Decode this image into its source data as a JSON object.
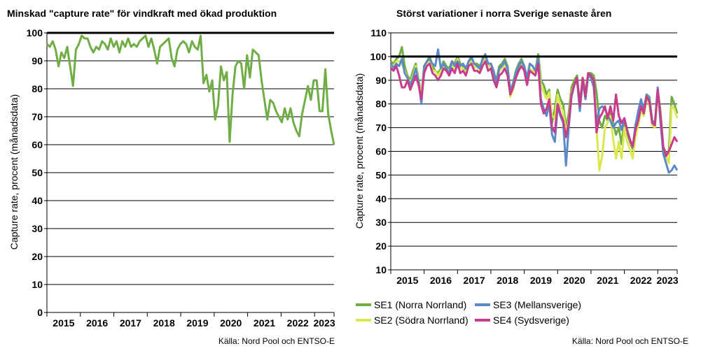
{
  "chart_data": [
    {
      "type": "line",
      "title": "Minskad \"capture rate\" för vindkraft med ökad produktion",
      "ylabel": "Capture rate, procent (månadsdata)",
      "xlabel": "",
      "ylim": [
        0,
        100
      ],
      "yticks": [
        0,
        10,
        20,
        30,
        40,
        50,
        60,
        70,
        80,
        90,
        100
      ],
      "x_tick_labels": [
        "2015",
        "2016",
        "2017",
        "2018",
        "2019",
        "2020",
        "2021",
        "2022",
        "2023"
      ],
      "reference_line": 100,
      "grid": true,
      "source": "Källa: Nord Pool och ENTSO-E",
      "series": [
        {
          "color": "#70ad47",
          "values": [
            96,
            95,
            97,
            94,
            88,
            93,
            91,
            95,
            88,
            81,
            94,
            96,
            99,
            98,
            98,
            95,
            93,
            95,
            94,
            97,
            96,
            94,
            98,
            95,
            97,
            93,
            97,
            95,
            98,
            95,
            96,
            95,
            97,
            98,
            99,
            95,
            98,
            94,
            89,
            95,
            96,
            97,
            98,
            91,
            88,
            94,
            96,
            97,
            96,
            93,
            97,
            95,
            94,
            99,
            82,
            85,
            79,
            83,
            69,
            74,
            88,
            83,
            86,
            61,
            78,
            88,
            90,
            89,
            80,
            92,
            84,
            94,
            93,
            92,
            83,
            76,
            69,
            76,
            75,
            72,
            70,
            68,
            73,
            69,
            73,
            68,
            65,
            63,
            71,
            76,
            81,
            76,
            83,
            83,
            72,
            72,
            87,
            71,
            65,
            60
          ]
        }
      ]
    },
    {
      "type": "line",
      "title": "Störst variationer i norra Sverige senaste åren",
      "ylabel": "Capture rate, procent (månadsdata)",
      "xlabel": "",
      "ylim": [
        10,
        110
      ],
      "yticks": [
        10,
        20,
        30,
        40,
        50,
        60,
        70,
        80,
        90,
        100,
        110
      ],
      "x_tick_labels": [
        "2015",
        "2016",
        "2017",
        "2018",
        "2019",
        "2020",
        "2021",
        "2022",
        "2023"
      ],
      "reference_line": 100,
      "grid": true,
      "legend_position": "bottom",
      "source": "Källa: Nord Pool och ENTSO-E",
      "series": [
        {
          "name": "SE1 (Norra Norrland)",
          "color": "#70ad47",
          "values": [
            98,
            97,
            99,
            100,
            104,
            96,
            92,
            90,
            94,
            97,
            90,
            84,
            96,
            98,
            100,
            96,
            94,
            93,
            95,
            98,
            96,
            95,
            98,
            97,
            100,
            97,
            96,
            94,
            98,
            99,
            97,
            97,
            96,
            98,
            100,
            97,
            97,
            93,
            90,
            96,
            97,
            99,
            96,
            85,
            89,
            94,
            97,
            99,
            96,
            91,
            97,
            96,
            94,
            101,
            90,
            88,
            84,
            86,
            72,
            78,
            86,
            82,
            80,
            70,
            76,
            87,
            90,
            92,
            80,
            91,
            85,
            93,
            93,
            92,
            85,
            73,
            70,
            75,
            73,
            77,
            72,
            67,
            70,
            63,
            73,
            68,
            64,
            61,
            70,
            74,
            80,
            78,
            84,
            83,
            73,
            72,
            86,
            77,
            62,
            59,
            60,
            83,
            80,
            76
          ]
        },
        {
          "name": "SE2 (Södra Norrland)",
          "color": "#d9e84f",
          "values": [
            96,
            96,
            98,
            98,
            97,
            94,
            91,
            89,
            92,
            96,
            89,
            84,
            95,
            97,
            98,
            94,
            94,
            92,
            94,
            96,
            95,
            93,
            97,
            95,
            99,
            95,
            95,
            93,
            97,
            98,
            95,
            96,
            94,
            97,
            99,
            96,
            96,
            91,
            88,
            94,
            95,
            97,
            94,
            83,
            86,
            92,
            95,
            97,
            95,
            89,
            95,
            94,
            93,
            98,
            88,
            85,
            82,
            85,
            75,
            74,
            84,
            79,
            77,
            68,
            73,
            85,
            88,
            90,
            78,
            89,
            83,
            91,
            92,
            88,
            70,
            52,
            58,
            70,
            72,
            75,
            65,
            57,
            64,
            57,
            70,
            64,
            61,
            57,
            66,
            71,
            77,
            75,
            82,
            80,
            71,
            70,
            84,
            76,
            60,
            58,
            55,
            79,
            78,
            74
          ]
        },
        {
          "name": "SE3 (Mellansverige)",
          "color": "#5b8ac6",
          "values": [
            97,
            95,
            97,
            96,
            99,
            93,
            91,
            88,
            91,
            95,
            89,
            80,
            96,
            98,
            99,
            97,
            96,
            103,
            95,
            97,
            95,
            93,
            98,
            96,
            98,
            96,
            97,
            95,
            98,
            100,
            97,
            96,
            95,
            99,
            101,
            97,
            97,
            94,
            89,
            95,
            96,
            98,
            95,
            86,
            88,
            93,
            96,
            98,
            96,
            91,
            97,
            96,
            94,
            99,
            82,
            78,
            75,
            80,
            67,
            64,
            79,
            75,
            72,
            54,
            70,
            83,
            88,
            90,
            77,
            90,
            82,
            92,
            91,
            87,
            72,
            78,
            79,
            78,
            75,
            73,
            70,
            72,
            73,
            69,
            74,
            69,
            65,
            62,
            71,
            77,
            82,
            77,
            84,
            82,
            73,
            72,
            87,
            72,
            59,
            55,
            51,
            52,
            54,
            52
          ]
        },
        {
          "name": "SE4 (Sydsverige)",
          "color": "#c83c8c",
          "values": [
            95,
            94,
            96,
            92,
            87,
            87,
            90,
            86,
            89,
            92,
            88,
            82,
            93,
            96,
            97,
            93,
            92,
            90,
            92,
            95,
            94,
            92,
            95,
            93,
            97,
            93,
            94,
            92,
            96,
            97,
            94,
            94,
            93,
            96,
            98,
            94,
            95,
            90,
            87,
            92,
            93,
            95,
            92,
            84,
            87,
            91,
            94,
            96,
            94,
            88,
            94,
            93,
            92,
            97,
            80,
            76,
            78,
            82,
            70,
            68,
            80,
            76,
            73,
            66,
            72,
            84,
            88,
            91,
            79,
            91,
            83,
            93,
            92,
            90,
            68,
            74,
            76,
            79,
            74,
            79,
            73,
            84,
            75,
            72,
            74,
            69,
            65,
            62,
            69,
            73,
            79,
            76,
            83,
            81,
            72,
            71,
            86,
            75,
            62,
            58,
            60,
            63,
            66,
            64
          ]
        }
      ]
    }
  ]
}
